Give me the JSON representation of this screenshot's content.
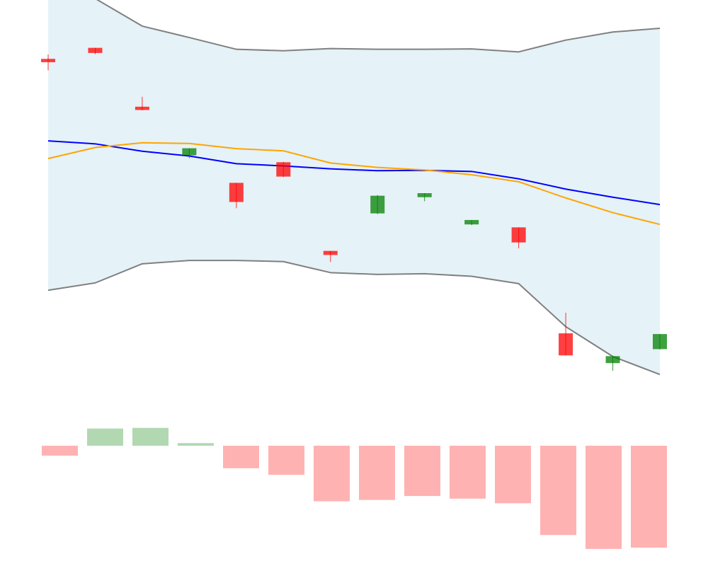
{
  "chart_data": [
    {
      "type": "candlestick",
      "panel": "price",
      "x": [
        0,
        1,
        2,
        3,
        4,
        5,
        6,
        7,
        8,
        9,
        10,
        11,
        12,
        13
      ],
      "ylim": [
        0,
        100
      ],
      "candles": [
        {
          "open": 84.0,
          "high": 85.2,
          "low": 80.9,
          "close": 83.1
        },
        {
          "open": 87.0,
          "high": 87.0,
          "low": 85.3,
          "close": 85.6
        },
        {
          "open": 71.0,
          "high": 73.7,
          "low": 70.0,
          "close": 70.1
        },
        {
          "open": 57.8,
          "high": 59.4,
          "low": 57.0,
          "close": 59.7
        },
        {
          "open": 50.3,
          "high": 50.3,
          "low": 43.4,
          "close": 45.1
        },
        {
          "open": 55.9,
          "high": 56.0,
          "low": 51.9,
          "close": 52.0
        },
        {
          "open": 31.8,
          "high": 31.8,
          "low": 28.8,
          "close": 30.7
        },
        {
          "open": 42.0,
          "high": 47.0,
          "low": 41.8,
          "close": 46.8
        },
        {
          "open": 46.4,
          "high": 47.5,
          "low": 45.3,
          "close": 47.5
        },
        {
          "open": 39.0,
          "high": 40.0,
          "low": 38.8,
          "close": 40.2
        },
        {
          "open": 38.2,
          "high": 38.2,
          "low": 32.5,
          "close": 34.1
        },
        {
          "open": 9.4,
          "high": 15.0,
          "low": 3.6,
          "close": 3.4
        },
        {
          "open": 1.3,
          "high": 3.2,
          "low": -0.8,
          "close": 3.2
        },
        {
          "open": 5.1,
          "high": 9.2,
          "low": 5.0,
          "close": 9.2
        }
      ],
      "bollinger_upper": [
        102.7,
        100.4,
        92.9,
        89.8,
        86.6,
        86.2,
        86.8,
        86.6,
        86.6,
        86.7,
        85.9,
        89.1,
        91.3,
        92.3
      ],
      "bollinger_lower": [
        21.1,
        23.1,
        28.3,
        29.2,
        29.2,
        28.9,
        25.9,
        25.4,
        25.6,
        24.9,
        22.9,
        11.2,
        3.1,
        -1.8
      ],
      "line_blue": [
        61.7,
        60.9,
        58.9,
        57.6,
        55.5,
        54.9,
        54.1,
        53.6,
        53.7,
        53.4,
        51.4,
        48.6,
        46.4,
        44.4
      ],
      "line_orange": [
        56.9,
        59.9,
        61.2,
        61.0,
        59.6,
        59.0,
        55.7,
        54.5,
        53.8,
        52.5,
        50.6,
        46.2,
        42.2,
        39.0
      ],
      "colors": {
        "band_fill": "#add8e6",
        "band_line": "#808080",
        "line_blue": "#0000ff",
        "line_orange": "#ffa500",
        "up": "#008000",
        "down": "#ff0000"
      }
    },
    {
      "type": "bar",
      "panel": "volume",
      "x": [
        0,
        1,
        2,
        3,
        4,
        5,
        6,
        7,
        8,
        9,
        10,
        11,
        12,
        13
      ],
      "values": [
        -7.5,
        13.0,
        13.5,
        2.0,
        -17.0,
        -22.0,
        -42.0,
        -41.0,
        -38.0,
        -40.0,
        -43.5,
        -67.5,
        -78.0,
        -77.0
      ],
      "ylim": [
        -80,
        15
      ],
      "colors": {
        "positive": "#b2d8b2",
        "negative": "#ffb2b2"
      }
    }
  ]
}
